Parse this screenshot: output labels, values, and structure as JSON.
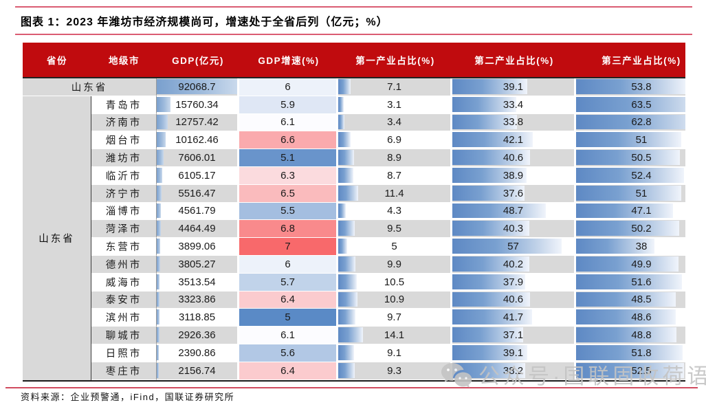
{
  "figure": {
    "title": "图表 1：2023 年潍坊市经济规模尚可，增速处于全省后列（亿元；%）",
    "source": "资料来源：企业预警通，iFind，国联证券研究所",
    "watermark": "公众号·国联固收荷语"
  },
  "formatting": {
    "header_bg": "#C00B0E",
    "stripe_gray": "#D9D9D9",
    "bar_blue": "#6D96C9",
    "pink_rule": "#DA5C72",
    "gdp_bar_max": 92068.7,
    "share_bar_max": 63.5,
    "growth_scale": {
      "min": 5,
      "mid": 6.1,
      "max": 7,
      "min_color": "#5A8AC6",
      "mid_color": "#FCFCFF",
      "max_color": "#F8696B"
    }
  },
  "chart_data": {
    "type": "table",
    "title": "图表 1：2023 年潍坊市经济规模尚可，增速处于全省后列（亿元；%）",
    "columns": [
      "省份",
      "地级市",
      "GDP(亿元)",
      "GDP增速(%)",
      "第一产业占比(%)",
      "第二产业占比(%)",
      "第三产业占比(%)"
    ],
    "province": "山东省",
    "province_row": {
      "region": "山东省",
      "gdp": 92068.7,
      "growth": 6,
      "primary": 7.1,
      "secondary": 39.1,
      "tertiary": 53.8
    },
    "city_rows": [
      {
        "region": "青岛市",
        "gdp": 15760.34,
        "growth": 5.9,
        "primary": 3.1,
        "secondary": 33.4,
        "tertiary": 63.5
      },
      {
        "region": "济南市",
        "gdp": 12757.42,
        "growth": 6.1,
        "primary": 3.4,
        "secondary": 33.8,
        "tertiary": 62.8
      },
      {
        "region": "烟台市",
        "gdp": 10162.46,
        "growth": 6.6,
        "primary": 6.9,
        "secondary": 42.1,
        "tertiary": 51
      },
      {
        "region": "潍坊市",
        "gdp": 7606.01,
        "growth": 5.1,
        "primary": 8.9,
        "secondary": 40.6,
        "tertiary": 50.5
      },
      {
        "region": "临沂市",
        "gdp": 6105.17,
        "growth": 6.3,
        "primary": 8.7,
        "secondary": 38.9,
        "tertiary": 52.4
      },
      {
        "region": "济宁市",
        "gdp": 5516.47,
        "growth": 6.5,
        "primary": 11.4,
        "secondary": 37.6,
        "tertiary": 51
      },
      {
        "region": "淄博市",
        "gdp": 4561.79,
        "growth": 5.5,
        "primary": 4.3,
        "secondary": 48.7,
        "tertiary": 47.1
      },
      {
        "region": "菏泽市",
        "gdp": 4464.49,
        "growth": 6.8,
        "primary": 9.5,
        "secondary": 40.3,
        "tertiary": 50.2
      },
      {
        "region": "东营市",
        "gdp": 3899.06,
        "growth": 7,
        "primary": 5,
        "secondary": 57,
        "tertiary": 38
      },
      {
        "region": "德州市",
        "gdp": 3805.27,
        "growth": 6,
        "primary": 9.9,
        "secondary": 40.2,
        "tertiary": 49.9
      },
      {
        "region": "威海市",
        "gdp": 3513.54,
        "growth": 5.7,
        "primary": 10.5,
        "secondary": 37.9,
        "tertiary": 51.6
      },
      {
        "region": "泰安市",
        "gdp": 3323.86,
        "growth": 6.4,
        "primary": 10.9,
        "secondary": 40.6,
        "tertiary": 48.5
      },
      {
        "region": "滨州市",
        "gdp": 3118.85,
        "growth": 5,
        "primary": 9.7,
        "secondary": 41.7,
        "tertiary": 48.6
      },
      {
        "region": "聊城市",
        "gdp": 2926.36,
        "growth": 6.1,
        "primary": 14.1,
        "secondary": 37.1,
        "tertiary": 48.8
      },
      {
        "region": "日照市",
        "gdp": 2390.86,
        "growth": 5.6,
        "primary": 9.1,
        "secondary": 39.1,
        "tertiary": 51.8
      },
      {
        "region": "枣庄市",
        "gdp": 2156.74,
        "growth": 6.4,
        "primary": 9.3,
        "secondary": 38.2,
        "tertiary": 52.5
      }
    ]
  }
}
